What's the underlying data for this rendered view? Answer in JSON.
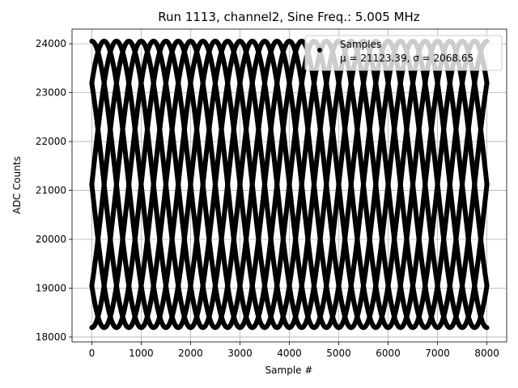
{
  "chart_data": {
    "type": "scatter",
    "title": "Run 1113, channel2, Sine Freq.: 5.005 MHz",
    "xlabel": "Sample #",
    "ylabel": "ADC Counts",
    "xlim": [
      -400,
      8400
    ],
    "ylim": [
      17900,
      24300
    ],
    "x_ticks": [
      0,
      1000,
      2000,
      3000,
      4000,
      5000,
      6000,
      7000,
      8000
    ],
    "y_ticks": [
      18000,
      19000,
      20000,
      21000,
      22000,
      23000,
      24000
    ],
    "grid": true,
    "legend_placement": "top-right",
    "series": [
      {
        "name": "Samples",
        "marker": "circle",
        "color": "#000000",
        "waveform": {
          "mean": 21123.39,
          "amplitude": 2930,
          "period_samples": 2000,
          "phase_offsets_samples": [
            0,
            250,
            500,
            750,
            1000,
            1250,
            1500,
            1750
          ],
          "x_start": 0,
          "x_end": 8000
        }
      }
    ],
    "legend": {
      "entries": [
        {
          "label": "Samples",
          "stats": "μ = 21123.39, σ = 2068.65"
        }
      ]
    }
  }
}
